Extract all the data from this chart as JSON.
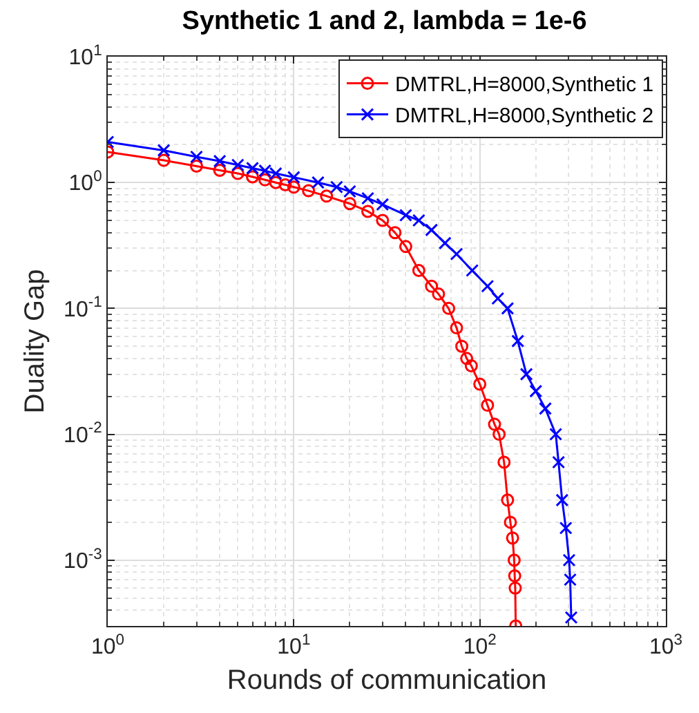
{
  "chart_data": {
    "type": "line",
    "title": "Synthetic 1 and 2, lambda = 1e-6",
    "xlabel": "Rounds of communication",
    "ylabel": "Duality Gap",
    "log": "xy",
    "grid": true,
    "legend": "top right",
    "line_style": "solid",
    "xlim": [
      1,
      1000
    ],
    "xticks": [
      {
        "value": 1,
        "label": "10$^{0}$"
      },
      {
        "value": 10,
        "label": "10$^{1}$"
      },
      {
        "value": 100,
        "label": "10$^{2}$"
      },
      {
        "value": 1000,
        "label": "10$^{3}$"
      }
    ],
    "ylim": [
      0.0003,
      10
    ],
    "yticks": [
      {
        "value": 0.001,
        "label": "10$^{-3}$"
      },
      {
        "value": 0.01,
        "label": "10$^{-2}$"
      },
      {
        "value": 0.1,
        "label": "10$^{-1}$"
      },
      {
        "value": 1,
        "label": "10$^{0}$"
      },
      {
        "value": 10,
        "label": "10$^{1}$"
      }
    ],
    "series": [
      {
        "name": "DMTRL,H=8000,Synthetic 1",
        "color": "#ff0000",
        "marker": "circle",
        "x": [
          1,
          2,
          3,
          4,
          5,
          6,
          7,
          8,
          9,
          10,
          12,
          15,
          20,
          25,
          30,
          35,
          40,
          47,
          55,
          60,
          68,
          75,
          80,
          85,
          90,
          100,
          110,
          120,
          127,
          135,
          141,
          146,
          150,
          153,
          154,
          155,
          156
        ],
        "values": [
          1.75,
          1.5,
          1.35,
          1.25,
          1.18,
          1.11,
          1.05,
          1.0,
          0.96,
          0.92,
          0.86,
          0.78,
          0.68,
          0.59,
          0.5,
          0.4,
          0.31,
          0.2,
          0.15,
          0.13,
          0.1,
          0.07,
          0.05,
          0.04,
          0.035,
          0.025,
          0.017,
          0.012,
          0.01,
          0.006,
          0.003,
          0.002,
          0.0015,
          0.001,
          0.00075,
          0.0006,
          0.0003
        ]
      },
      {
        "name": "DMTRL,H=8000,Synthetic 2",
        "color": "#0000ff",
        "marker": "cross",
        "x": [
          1,
          2,
          3,
          4,
          5,
          6,
          7,
          8,
          10,
          13.5,
          17,
          20,
          25,
          30,
          40,
          47,
          55,
          65,
          75,
          91,
          110,
          125,
          141,
          160,
          178,
          200,
          225,
          256,
          265,
          277,
          290,
          302,
          306,
          310
        ],
        "values": [
          2.1,
          1.8,
          1.6,
          1.48,
          1.38,
          1.3,
          1.24,
          1.18,
          1.1,
          1.0,
          0.92,
          0.85,
          0.75,
          0.67,
          0.55,
          0.5,
          0.42,
          0.33,
          0.27,
          0.2,
          0.15,
          0.12,
          0.1,
          0.055,
          0.03,
          0.022,
          0.016,
          0.01,
          0.006,
          0.003,
          0.0018,
          0.001,
          0.0007,
          0.00035
        ]
      }
    ]
  }
}
